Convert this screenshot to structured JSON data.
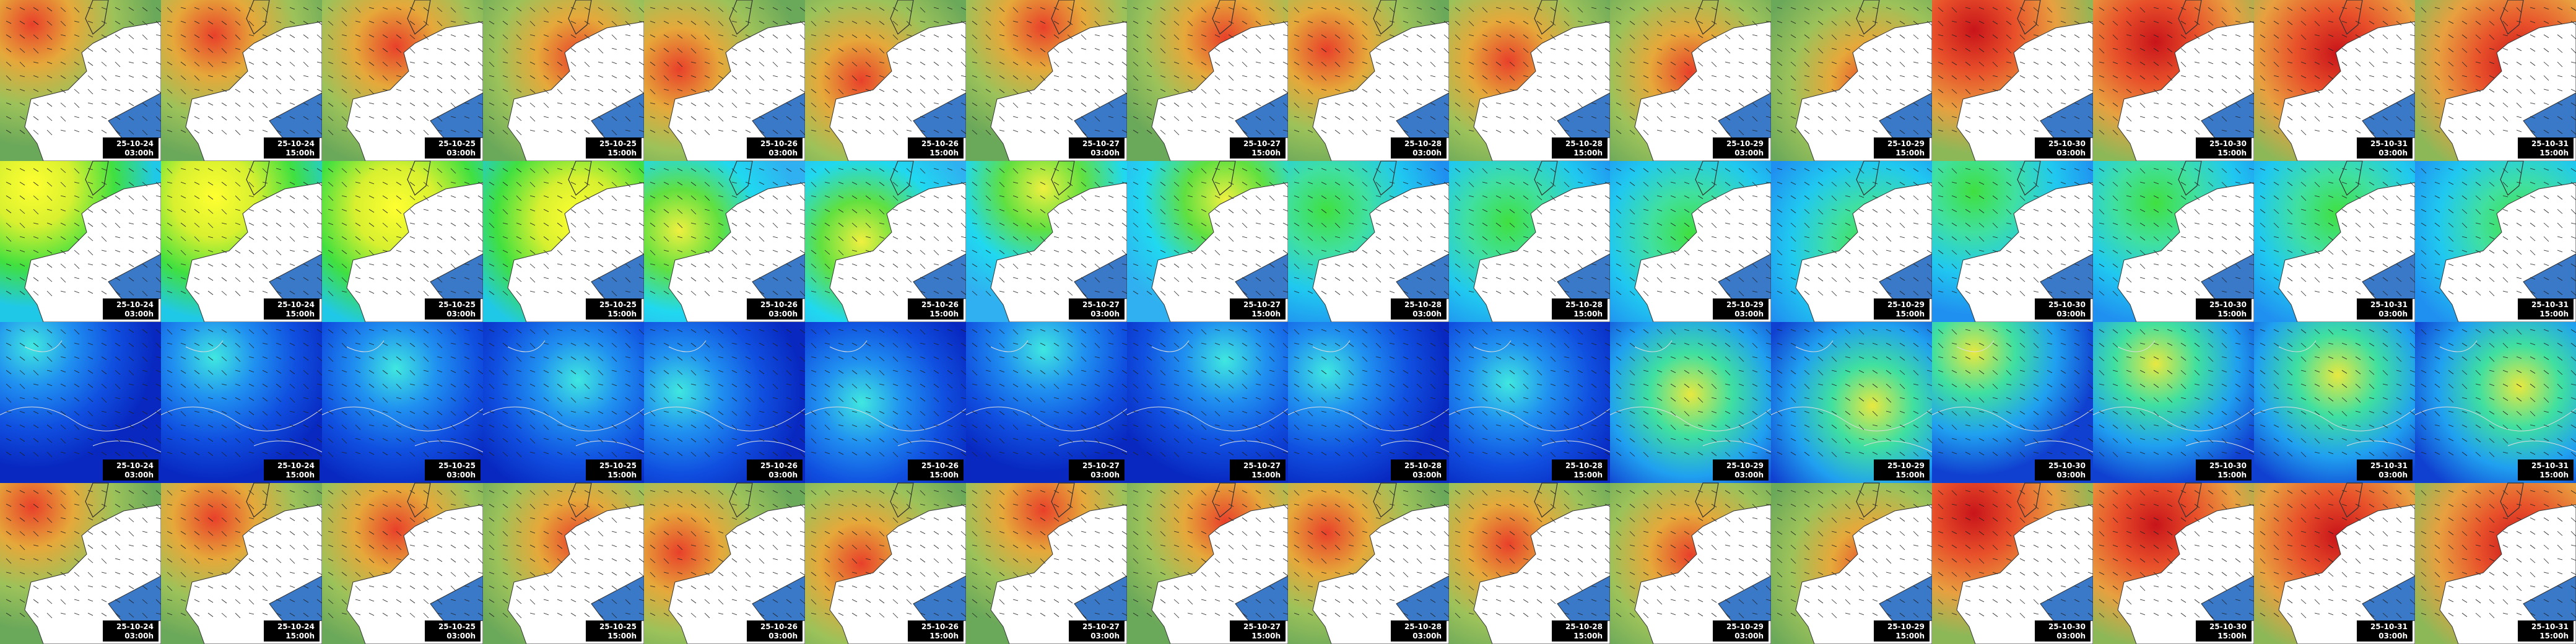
{
  "rows": [
    {
      "tiles": [
        {
          "date": "25-10-24",
          "time": "03:00h"
        },
        {
          "date": "25-10-24",
          "time": "15:00h"
        },
        {
          "date": "25-10-25",
          "time": "03:00h"
        },
        {
          "date": "25-10-25",
          "time": "15:00h"
        },
        {
          "date": "25-10-26",
          "time": "03:00h"
        },
        {
          "date": "25-10-26",
          "time": "15:00h"
        },
        {
          "date": "25-10-27",
          "time": "03:00h"
        },
        {
          "date": "25-10-27",
          "time": "15:00h"
        },
        {
          "date": "25-10-28",
          "time": "03:00h"
        },
        {
          "date": "25-10-28",
          "time": "15:00h"
        },
        {
          "date": "25-10-29",
          "time": "03:00h"
        },
        {
          "date": "25-10-29",
          "time": "15:00h"
        },
        {
          "date": "25-10-30",
          "time": "03:00h"
        },
        {
          "date": "25-10-30",
          "time": "15:00h"
        },
        {
          "date": "25-10-31",
          "time": "03:00h"
        },
        {
          "date": "25-10-31",
          "time": "15:00h"
        }
      ]
    },
    {
      "tiles": [
        {
          "date": "25-10-24",
          "time": "03:00h"
        },
        {
          "date": "25-10-24",
          "time": "15:00h"
        },
        {
          "date": "25-10-25",
          "time": "03:00h"
        },
        {
          "date": "25-10-25",
          "time": "15:00h"
        },
        {
          "date": "25-10-26",
          "time": "03:00h"
        },
        {
          "date": "25-10-26",
          "time": "15:00h"
        },
        {
          "date": "25-10-27",
          "time": "03:00h"
        },
        {
          "date": "25-10-27",
          "time": "15:00h"
        },
        {
          "date": "25-10-28",
          "time": "03:00h"
        },
        {
          "date": "25-10-28",
          "time": "15:00h"
        },
        {
          "date": "25-10-29",
          "time": "03:00h"
        },
        {
          "date": "25-10-29",
          "time": "15:00h"
        },
        {
          "date": "25-10-30",
          "time": "03:00h"
        },
        {
          "date": "25-10-30",
          "time": "15:00h"
        },
        {
          "date": "25-10-31",
          "time": "03:00h"
        },
        {
          "date": "25-10-31",
          "time": "15:00h"
        }
      ]
    },
    {
      "tiles": [
        {
          "date": "25-10-24",
          "time": "03:00h"
        },
        {
          "date": "25-10-24",
          "time": "15:00h"
        },
        {
          "date": "25-10-25",
          "time": "03:00h"
        },
        {
          "date": "25-10-25",
          "time": "15:00h"
        },
        {
          "date": "25-10-26",
          "time": "03:00h"
        },
        {
          "date": "25-10-26",
          "time": "15:00h"
        },
        {
          "date": "25-10-27",
          "time": "03:00h"
        },
        {
          "date": "25-10-27",
          "time": "15:00h"
        },
        {
          "date": "25-10-28",
          "time": "03:00h"
        },
        {
          "date": "25-10-28",
          "time": "15:00h"
        },
        {
          "date": "25-10-29",
          "time": "03:00h"
        },
        {
          "date": "25-10-29",
          "time": "15:00h"
        },
        {
          "date": "25-10-30",
          "time": "03:00h"
        },
        {
          "date": "25-10-30",
          "time": "15:00h"
        },
        {
          "date": "25-10-31",
          "time": "03:00h"
        },
        {
          "date": "25-10-31",
          "time": "15:00h"
        }
      ]
    },
    {
      "tiles": [
        {
          "date": "25-10-24",
          "time": "03:00h"
        },
        {
          "date": "25-10-24",
          "time": "15:00h"
        },
        {
          "date": "25-10-25",
          "time": "03:00h"
        },
        {
          "date": "25-10-25",
          "time": "15:00h"
        },
        {
          "date": "25-10-26",
          "time": "03:00h"
        },
        {
          "date": "25-10-26",
          "time": "15:00h"
        },
        {
          "date": "25-10-27",
          "time": "03:00h"
        },
        {
          "date": "25-10-27",
          "time": "15:00h"
        },
        {
          "date": "25-10-28",
          "time": "03:00h"
        },
        {
          "date": "25-10-28",
          "time": "15:00h"
        },
        {
          "date": "25-10-29",
          "time": "03:00h"
        },
        {
          "date": "25-10-29",
          "time": "15:00h"
        },
        {
          "date": "25-10-30",
          "time": "03:00h"
        },
        {
          "date": "25-10-30",
          "time": "15:00h"
        },
        {
          "date": "25-10-31",
          "time": "03:00h"
        },
        {
          "date": "25-10-31",
          "time": "15:00h"
        }
      ]
    }
  ]
}
